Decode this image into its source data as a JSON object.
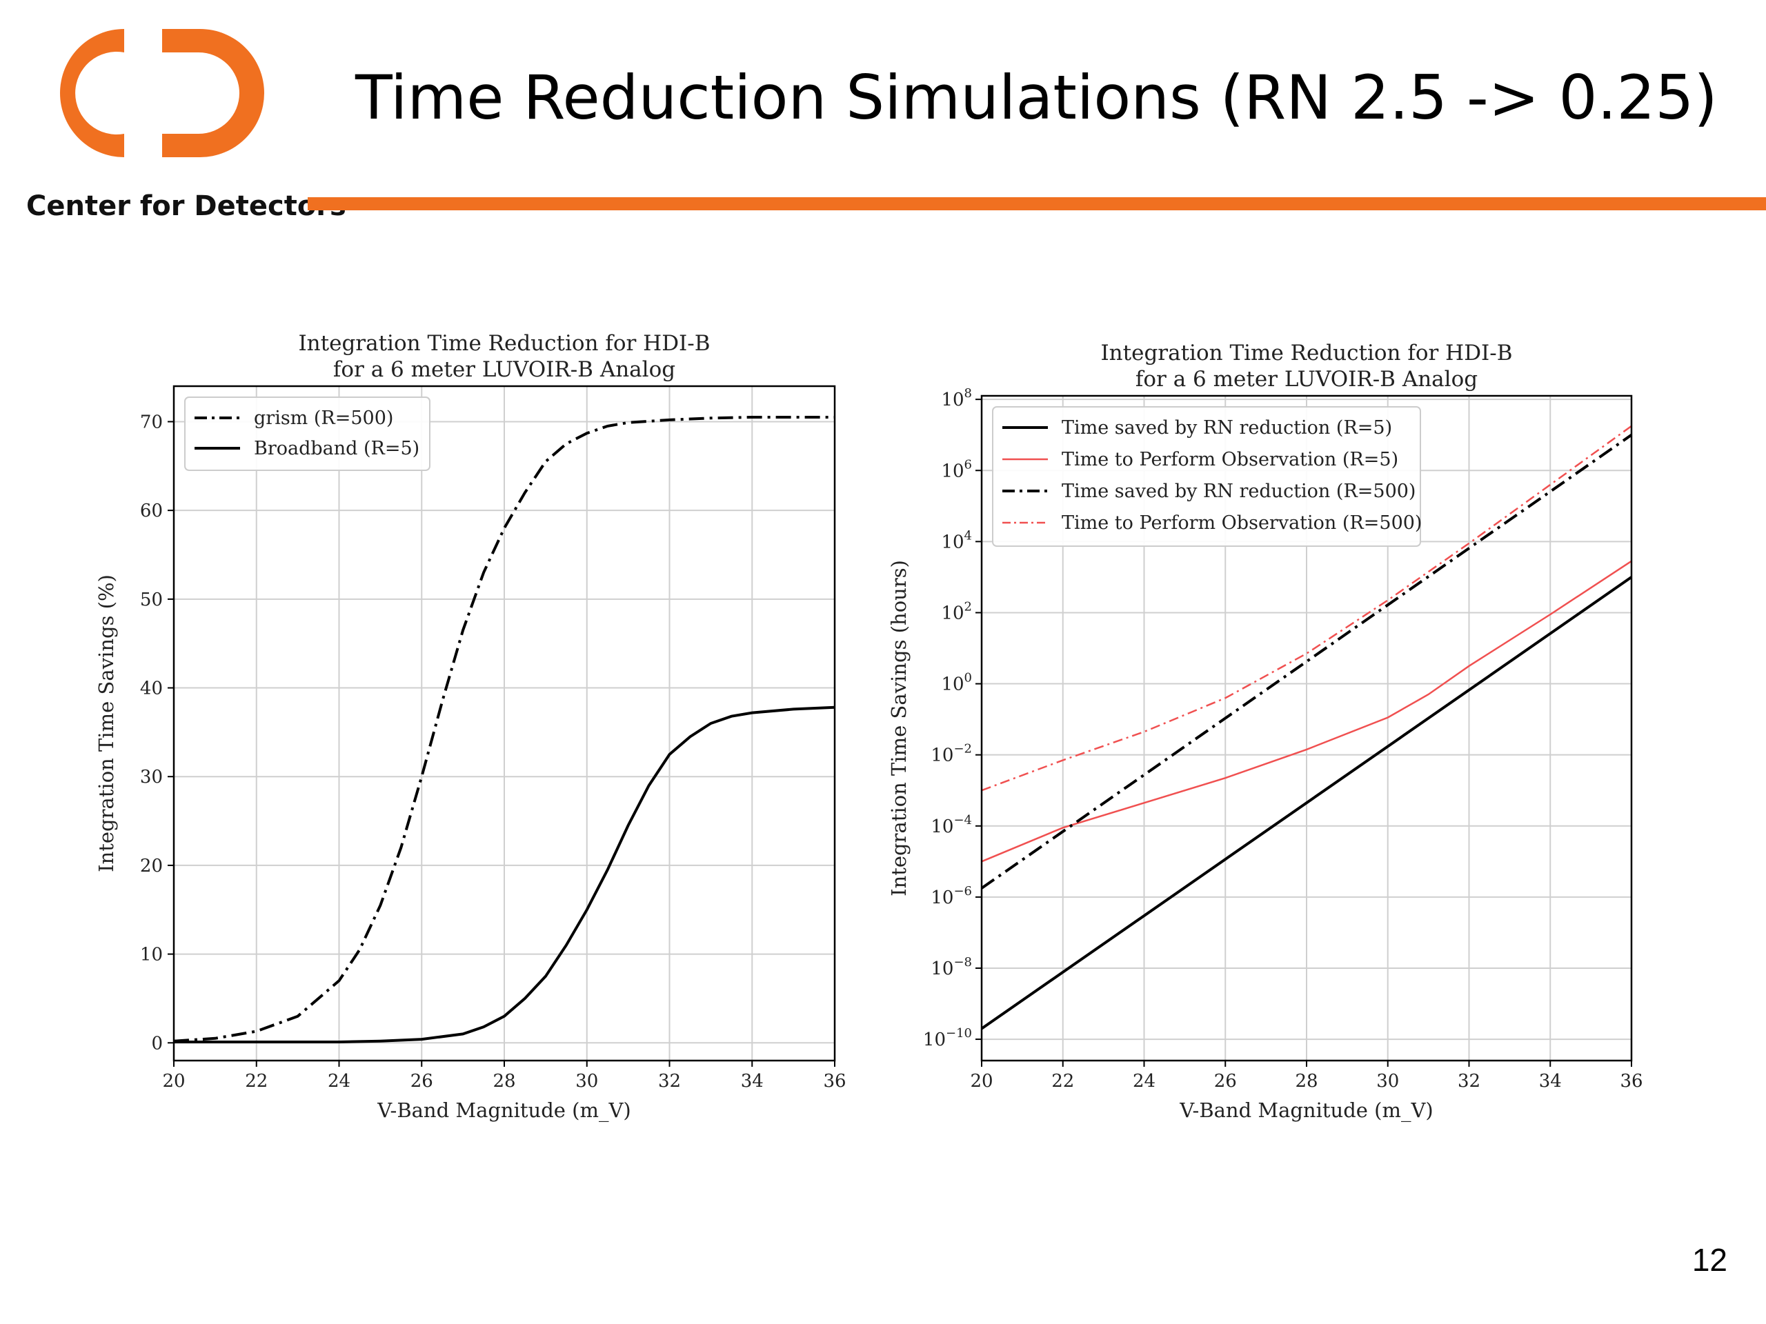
{
  "header": {
    "title": "Time Reduction Simulations (RN 2.5 -> 0.25)",
    "org_name": "Center for Detectors",
    "logo": "cfd-logo",
    "page_number": "12"
  },
  "colors": {
    "brand_orange": "#F07020",
    "series_black": "#000000",
    "series_red": "#F05050"
  },
  "chart_data": [
    {
      "type": "line",
      "title": "Integration Time Reduction for HDI-B\nfor a 6 meter LUVOIR-B Analog",
      "xlabel": "V-Band Magnitude (m_V)",
      "ylabel": "Integration Time Savings (%)",
      "xlim": [
        20,
        36
      ],
      "ylim": [
        -2,
        74
      ],
      "xticks": [
        "20",
        "22",
        "24",
        "26",
        "28",
        "30",
        "32",
        "34",
        "36"
      ],
      "yticks": [
        "0",
        "10",
        "20",
        "30",
        "40",
        "50",
        "60",
        "70"
      ],
      "grid": true,
      "legend_position": "top-left",
      "series": [
        {
          "name": "grism (R=500)",
          "style": "dashdot",
          "color": "#000000",
          "points": [
            [
              20,
              0.2
            ],
            [
              21,
              0.5
            ],
            [
              22,
              1.3
            ],
            [
              23,
              3.0
            ],
            [
              24,
              7.0
            ],
            [
              24.5,
              10.5
            ],
            [
              25,
              15.5
            ],
            [
              25.5,
              22
            ],
            [
              26,
              30
            ],
            [
              26.5,
              38.5
            ],
            [
              27,
              46.5
            ],
            [
              27.5,
              53
            ],
            [
              28,
              58
            ],
            [
              28.5,
              62
            ],
            [
              29,
              65.5
            ],
            [
              29.5,
              67.5
            ],
            [
              30,
              68.7
            ],
            [
              30.5,
              69.5
            ],
            [
              31,
              69.9
            ],
            [
              32,
              70.2
            ],
            [
              33,
              70.4
            ],
            [
              34,
              70.5
            ],
            [
              35,
              70.5
            ],
            [
              36,
              70.5
            ]
          ]
        },
        {
          "name": "Broadband (R=5)",
          "style": "solid",
          "color": "#000000",
          "points": [
            [
              20,
              0.1
            ],
            [
              22,
              0.1
            ],
            [
              24,
              0.1
            ],
            [
              25,
              0.2
            ],
            [
              26,
              0.4
            ],
            [
              27,
              1.0
            ],
            [
              27.5,
              1.8
            ],
            [
              28,
              3.0
            ],
            [
              28.5,
              5.0
            ],
            [
              29,
              7.5
            ],
            [
              29.5,
              11
            ],
            [
              30,
              15
            ],
            [
              30.5,
              19.5
            ],
            [
              31,
              24.5
            ],
            [
              31.5,
              29
            ],
            [
              32,
              32.5
            ],
            [
              32.5,
              34.5
            ],
            [
              33,
              36
            ],
            [
              33.5,
              36.8
            ],
            [
              34,
              37.2
            ],
            [
              35,
              37.6
            ],
            [
              36,
              37.8
            ]
          ]
        }
      ]
    },
    {
      "type": "line",
      "title": "Integration Time Reduction for HDI-B\nfor a 6 meter LUVOIR-B Analog",
      "xlabel": "V-Band Magnitude (m_V)",
      "ylabel": "Integration Time Savings (hours)",
      "xlim": [
        20,
        36
      ],
      "ylim_log10": [
        -10.6,
        8.1
      ],
      "yscale": "log",
      "xticks": [
        "20",
        "22",
        "24",
        "26",
        "28",
        "30",
        "32",
        "34",
        "36"
      ],
      "yticks_exponents": [
        -10,
        -8,
        -6,
        -4,
        -2,
        0,
        2,
        4,
        6,
        8
      ],
      "grid": true,
      "legend_position": "top-left",
      "series": [
        {
          "name": "Time saved by RN reduction (R=5)",
          "style": "solid",
          "color": "#000000",
          "points_log10": [
            [
              20,
              -9.7
            ],
            [
              36,
              3.0
            ]
          ]
        },
        {
          "name": "Time to Perform Observation (R=5)",
          "style": "solid",
          "color": "#F05050",
          "points_log10": [
            [
              20,
              -5.0
            ],
            [
              22,
              -4.05
            ],
            [
              24,
              -3.35
            ],
            [
              26,
              -2.65
            ],
            [
              28,
              -1.85
            ],
            [
              30,
              -0.95
            ],
            [
              31,
              -0.3
            ],
            [
              32,
              0.5
            ],
            [
              34,
              1.95
            ],
            [
              36,
              3.45
            ]
          ]
        },
        {
          "name": "Time saved by RN reduction (R=500)",
          "style": "dashdot",
          "color": "#000000",
          "points_log10": [
            [
              20,
              -5.75
            ],
            [
              36,
              7.0
            ]
          ]
        },
        {
          "name": "Time to Perform Observation (R=500)",
          "style": "dashdot",
          "color": "#F05050",
          "points_log10": [
            [
              20,
              -3.0
            ],
            [
              22,
              -2.15
            ],
            [
              24,
              -1.35
            ],
            [
              26,
              -0.4
            ],
            [
              28,
              0.85
            ],
            [
              30,
              2.35
            ],
            [
              32,
              3.95
            ],
            [
              34,
              5.6
            ],
            [
              36,
              7.25
            ]
          ]
        }
      ]
    }
  ]
}
